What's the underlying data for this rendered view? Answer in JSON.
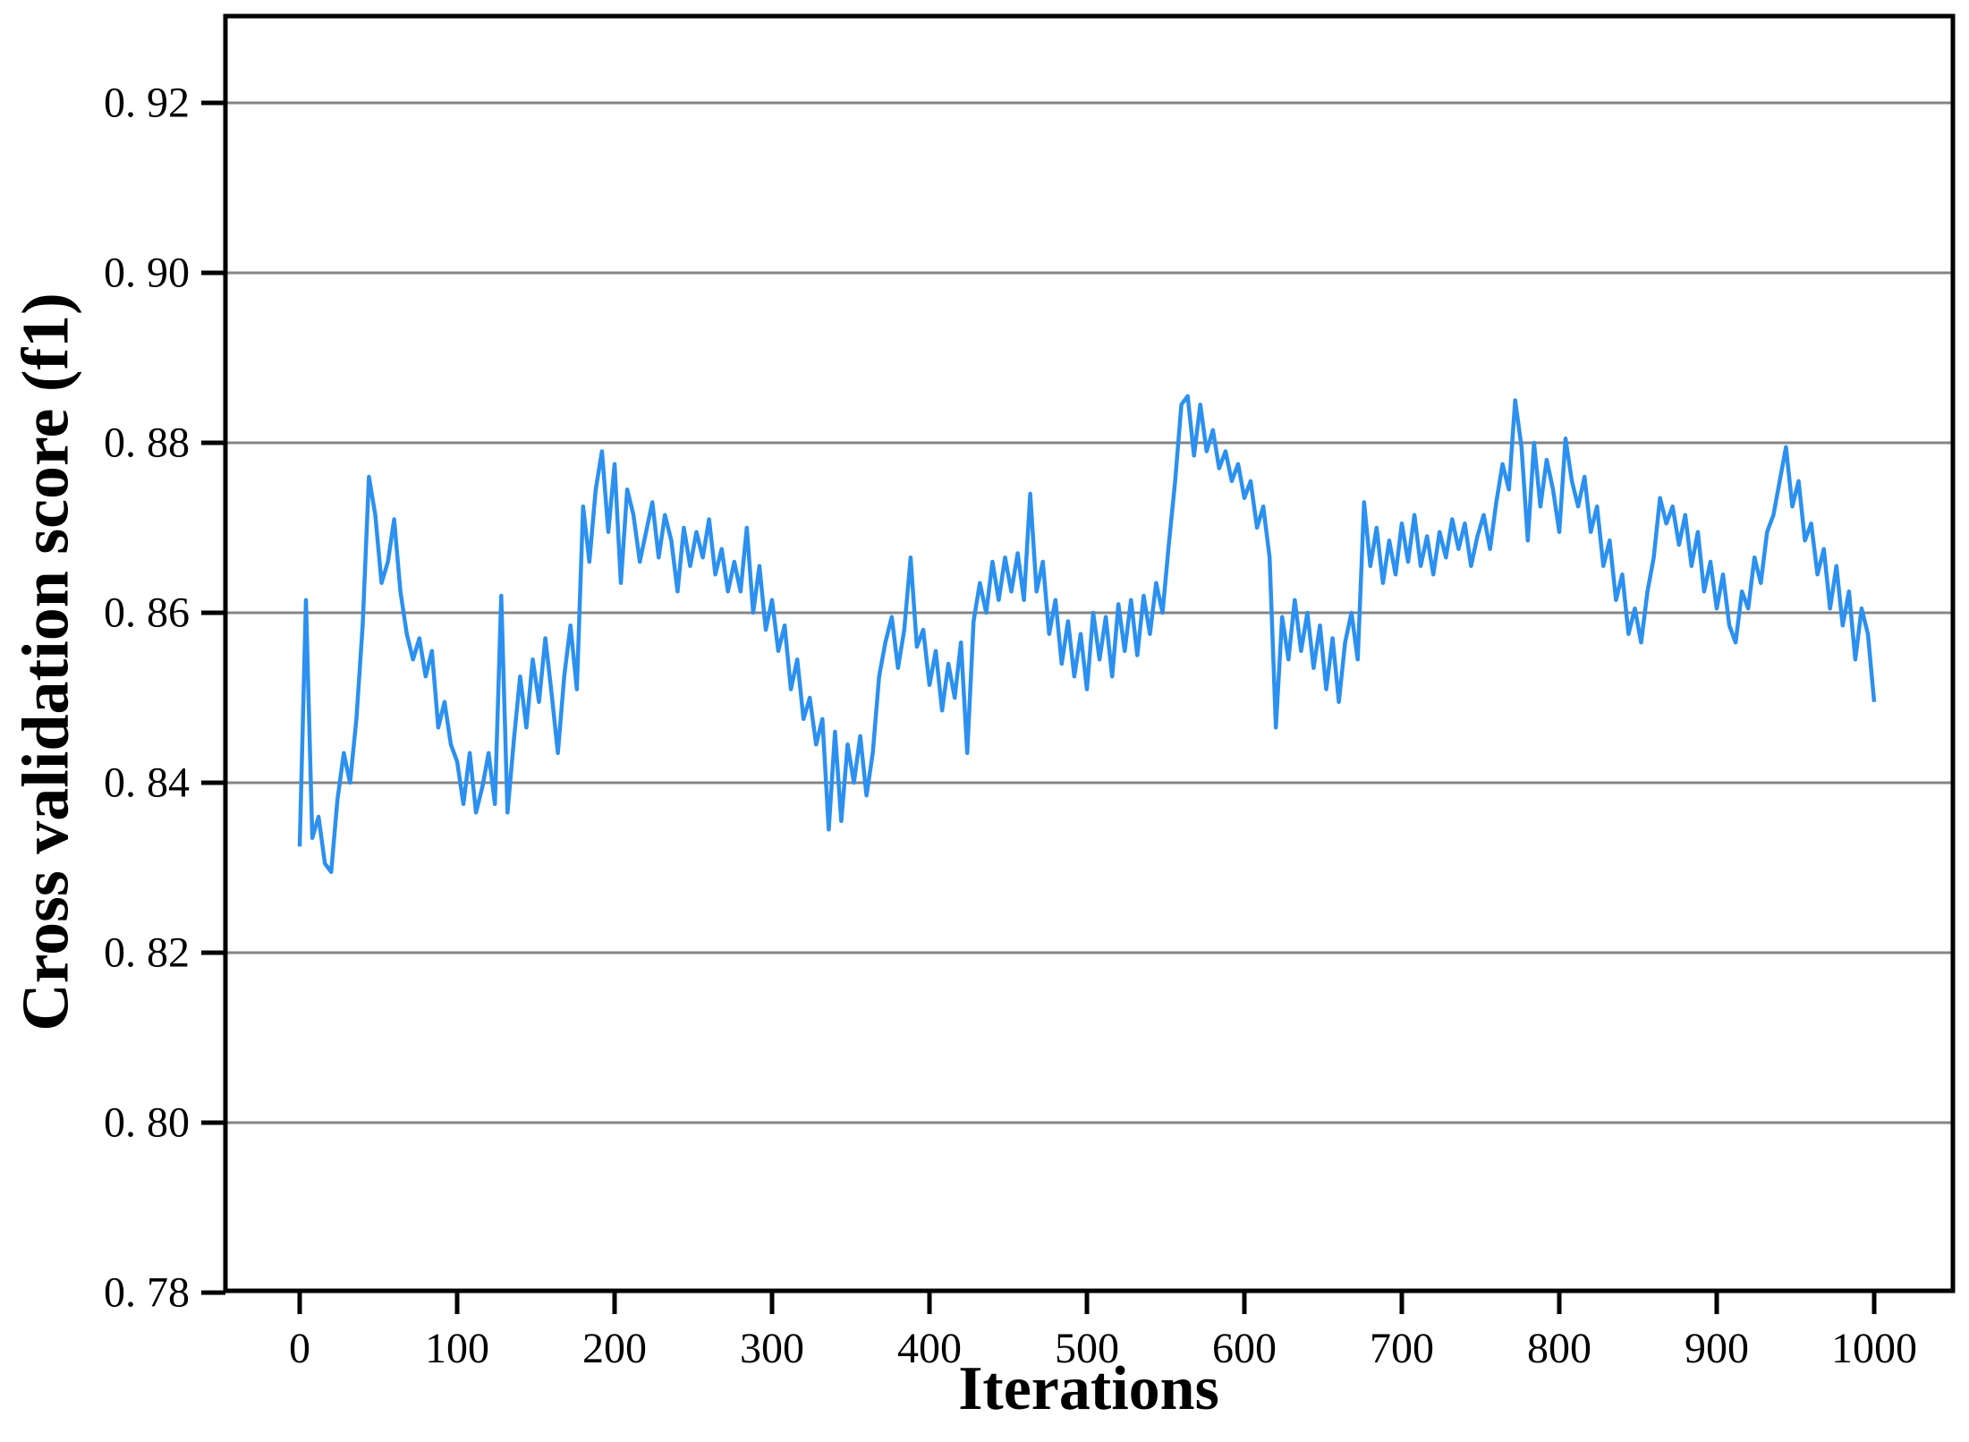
{
  "chart_data": {
    "type": "line",
    "title": "",
    "xlabel": "Iterations",
    "ylabel": "Cross validation score (f1)",
    "grid": "horizontal",
    "legend": "none",
    "x_axis": {
      "min": 0,
      "max": 1000,
      "ticks": [
        0,
        100,
        200,
        300,
        400,
        500,
        600,
        700,
        800,
        900,
        1000
      ],
      "tick_labels": [
        "0",
        "100",
        "200",
        "300",
        "400",
        "500",
        "600",
        "700",
        "800",
        "900",
        "1000"
      ]
    },
    "y_axis": {
      "min": 0.78,
      "max": 0.93,
      "ticks": [
        0.78,
        0.8,
        0.82,
        0.84,
        0.86,
        0.88,
        0.9,
        0.92
      ],
      "tick_labels": [
        "0. 78",
        "0. 80",
        "0. 82",
        "0. 84",
        "0. 86",
        "0. 88",
        "0. 90",
        "0. 92"
      ]
    },
    "series": [
      {
        "name": "cross-validation-f1-score",
        "color": "#2b90f0",
        "x_start": 0,
        "x_step": 4,
        "values": [
          0.8325,
          0.8615,
          0.8335,
          0.836,
          0.8305,
          0.8295,
          0.838,
          0.8435,
          0.84,
          0.8475,
          0.8585,
          0.876,
          0.8715,
          0.8635,
          0.866,
          0.871,
          0.8625,
          0.8575,
          0.8545,
          0.857,
          0.8525,
          0.8555,
          0.8465,
          0.8495,
          0.8445,
          0.8425,
          0.8375,
          0.8435,
          0.8365,
          0.8395,
          0.8435,
          0.8375,
          0.862,
          0.8365,
          0.845,
          0.8525,
          0.8465,
          0.8545,
          0.8495,
          0.857,
          0.8505,
          0.8435,
          0.8525,
          0.8585,
          0.851,
          0.8725,
          0.866,
          0.8745,
          0.879,
          0.8695,
          0.8775,
          0.8635,
          0.8745,
          0.8715,
          0.866,
          0.8695,
          0.873,
          0.8665,
          0.8715,
          0.8685,
          0.8625,
          0.87,
          0.8655,
          0.8695,
          0.8665,
          0.871,
          0.8645,
          0.8675,
          0.8625,
          0.866,
          0.8625,
          0.87,
          0.86,
          0.8655,
          0.858,
          0.8615,
          0.8555,
          0.8585,
          0.851,
          0.8545,
          0.8475,
          0.85,
          0.8445,
          0.8475,
          0.8345,
          0.846,
          0.8355,
          0.8445,
          0.84,
          0.8455,
          0.8385,
          0.8435,
          0.8525,
          0.8565,
          0.8595,
          0.8535,
          0.858,
          0.8665,
          0.856,
          0.858,
          0.8515,
          0.8555,
          0.8485,
          0.854,
          0.85,
          0.8565,
          0.8435,
          0.859,
          0.8635,
          0.86,
          0.866,
          0.8615,
          0.8665,
          0.8625,
          0.867,
          0.8615,
          0.874,
          0.8625,
          0.866,
          0.8575,
          0.8615,
          0.854,
          0.859,
          0.8525,
          0.8575,
          0.851,
          0.86,
          0.8545,
          0.8595,
          0.8525,
          0.861,
          0.8555,
          0.8615,
          0.855,
          0.862,
          0.8575,
          0.8635,
          0.86,
          0.868,
          0.8755,
          0.8845,
          0.8855,
          0.8785,
          0.8845,
          0.879,
          0.8815,
          0.877,
          0.879,
          0.8755,
          0.8775,
          0.8735,
          0.8755,
          0.87,
          0.8725,
          0.8665,
          0.8465,
          0.8595,
          0.8545,
          0.8615,
          0.8555,
          0.86,
          0.8535,
          0.8585,
          0.851,
          0.857,
          0.8495,
          0.8565,
          0.86,
          0.8545,
          0.873,
          0.8655,
          0.87,
          0.8635,
          0.8685,
          0.8645,
          0.8705,
          0.866,
          0.8715,
          0.8655,
          0.869,
          0.8645,
          0.8695,
          0.8665,
          0.871,
          0.8675,
          0.8705,
          0.8655,
          0.869,
          0.8715,
          0.8675,
          0.873,
          0.8775,
          0.8745,
          0.885,
          0.8795,
          0.8685,
          0.88,
          0.8725,
          0.878,
          0.8745,
          0.8695,
          0.8805,
          0.8755,
          0.8725,
          0.876,
          0.8695,
          0.8725,
          0.8655,
          0.8685,
          0.8615,
          0.8645,
          0.8575,
          0.8605,
          0.8565,
          0.8625,
          0.8665,
          0.8735,
          0.8705,
          0.8725,
          0.868,
          0.8715,
          0.8655,
          0.8695,
          0.8625,
          0.866,
          0.8605,
          0.8645,
          0.8585,
          0.8565,
          0.8625,
          0.8605,
          0.8665,
          0.8635,
          0.8695,
          0.8715,
          0.8755,
          0.8795,
          0.8725,
          0.8755,
          0.8685,
          0.8705,
          0.8645,
          0.8675,
          0.8605,
          0.8655,
          0.8585,
          0.8625,
          0.8545,
          0.8605,
          0.8575,
          0.8495
        ]
      }
    ]
  },
  "styles": {
    "line_color": "#2b90f0",
    "grid_color": "#858585",
    "axis_color": "#000000",
    "background": "#ffffff"
  }
}
